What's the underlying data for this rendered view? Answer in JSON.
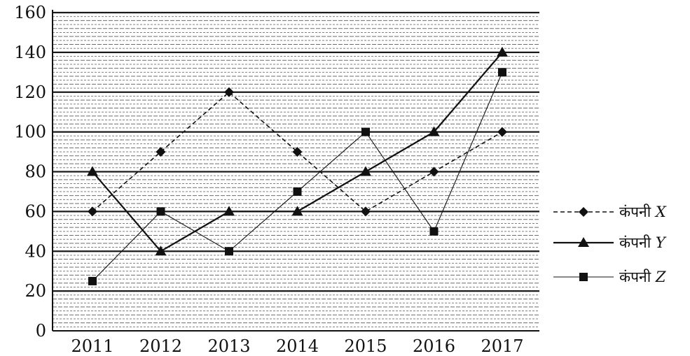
{
  "chart_data": {
    "type": "line",
    "categories": [
      "2011",
      "2012",
      "2013",
      "2014",
      "2015",
      "2016",
      "2017"
    ],
    "y_ticks": [
      "0",
      "20",
      "40",
      "60",
      "80",
      "100",
      "120",
      "140",
      "160"
    ],
    "ylim": [
      0,
      160
    ],
    "grid": true,
    "legend_position": "right",
    "series": [
      {
        "name": "कंपनी",
        "letter": "X",
        "marker": "diamond",
        "line_style": "dashed",
        "values": [
          60,
          90,
          120,
          90,
          60,
          80,
          100
        ]
      },
      {
        "name": "कंपनी",
        "letter": "Y",
        "marker": "triangle",
        "line_style": "solid",
        "values": [
          80,
          40,
          60,
          60,
          80,
          100,
          140
        ]
      },
      {
        "name": "कंपनी",
        "letter": "Z",
        "marker": "square",
        "line_style": "thin-solid",
        "values": [
          25,
          60,
          40,
          70,
          100,
          50,
          130
        ]
      }
    ]
  }
}
